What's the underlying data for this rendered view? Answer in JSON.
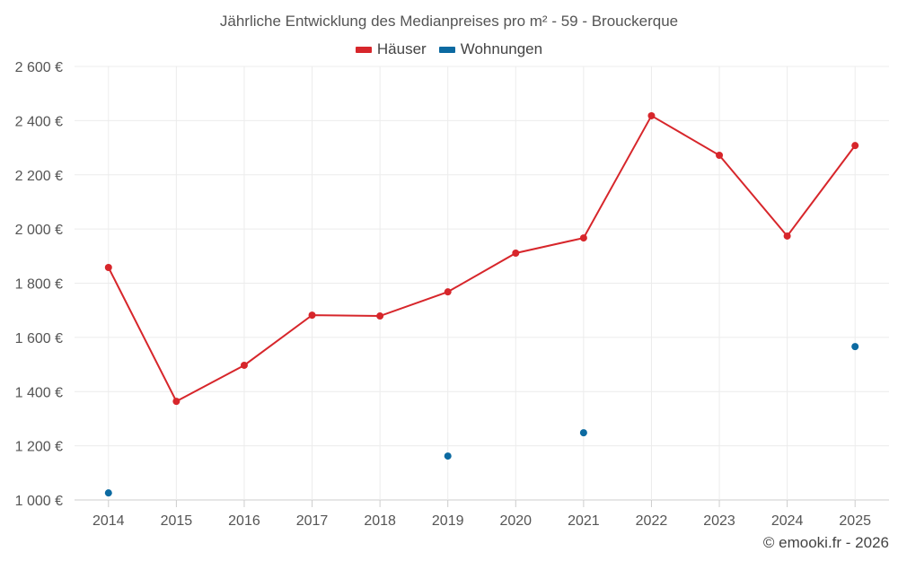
{
  "chart_data": {
    "type": "line",
    "title": "Jährliche Entwicklung des Medianpreises pro m² - 59 - Brouckerque",
    "categories": [
      "2014",
      "2015",
      "2016",
      "2017",
      "2018",
      "2019",
      "2020",
      "2021",
      "2022",
      "2023",
      "2024",
      "2025"
    ],
    "series": [
      {
        "name": "Häuser",
        "color": "#d7262b",
        "values": [
          1858,
          1364,
          1497,
          1682,
          1679,
          1768,
          1911,
          1967,
          2418,
          2272,
          1974,
          2308
        ]
      },
      {
        "name": "Wohnungen",
        "color": "#0c6aa1",
        "values": [
          1026,
          null,
          null,
          null,
          null,
          1162,
          null,
          1248,
          null,
          null,
          null,
          1566
        ]
      }
    ],
    "ylim": [
      1000,
      2600
    ],
    "yticks": [
      1000,
      1200,
      1400,
      1600,
      1800,
      2000,
      2200,
      2400,
      2600
    ],
    "ytick_labels": [
      "1 000 €",
      "1 200 €",
      "1 400 €",
      "1 600 €",
      "1 800 €",
      "2 000 €",
      "2 200 €",
      "2 400 €",
      "2 600 €"
    ],
    "grid": true,
    "legend_position": "top-center",
    "xlabel": "",
    "ylabel": ""
  },
  "credit": "© emooki.fr - 2026"
}
